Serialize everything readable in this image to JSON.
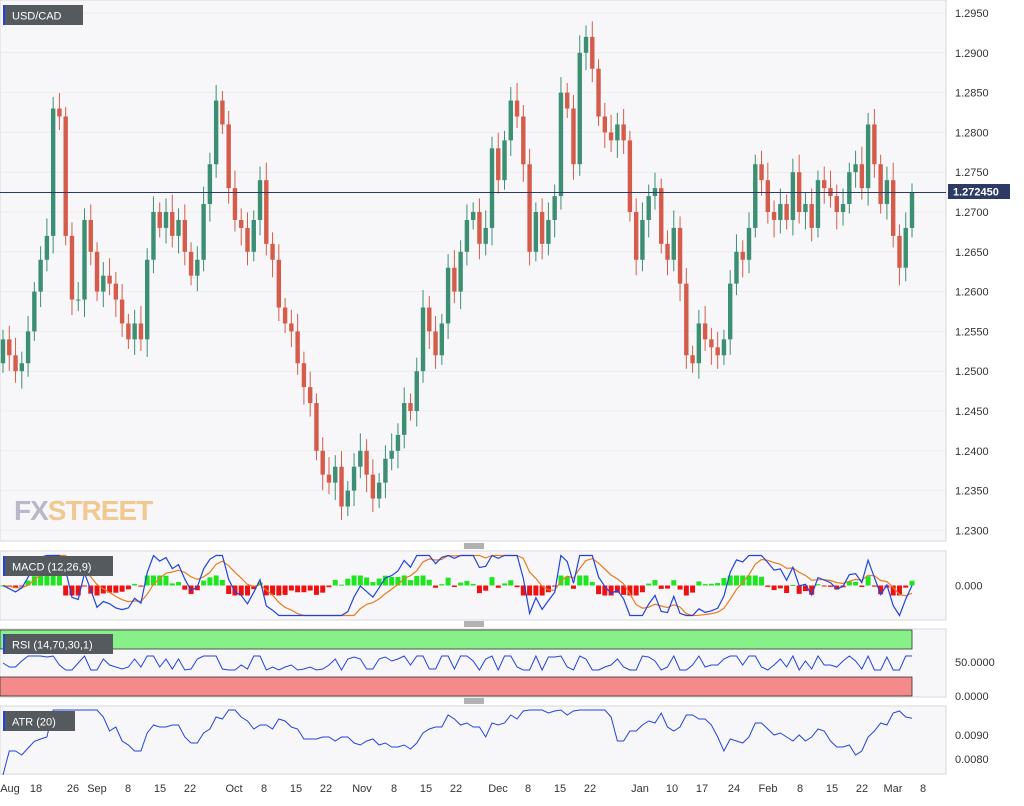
{
  "symbol": "USD/CAD",
  "brand": {
    "fx": "FX",
    "street": "STREET"
  },
  "colors": {
    "up": "#3c8f73",
    "down": "#d55c4b",
    "price_line": "#2e3a66",
    "price_tag": "#2e3a66",
    "macd_line": "#2244dd",
    "signal_line": "#e87c1e",
    "hist_pos": "#1ee61e",
    "hist_neg": "#ee1111",
    "rsi_line": "#2244dd",
    "rsi_overbought": "#88f088",
    "rsi_oversold": "#f48a8a",
    "atr_line": "#2244dd",
    "grid": "#ececec",
    "panel_bg": "#f7f7f9"
  },
  "last_price": "1.272450",
  "price_axis": [
    "1.2950",
    "1.2900",
    "1.2850",
    "1.2800",
    "1.2750",
    "1.2700",
    "1.2650",
    "1.2600",
    "1.2550",
    "1.2500",
    "1.2450",
    "1.2400",
    "1.2350",
    "1.2300"
  ],
  "x_axis": [
    "Aug",
    "18",
    "26",
    "Sep",
    "8",
    "15",
    "22",
    "Oct",
    "8",
    "15",
    "22",
    "Nov",
    "8",
    "15",
    "22",
    "Dec",
    "8",
    "15",
    "22",
    "Jan",
    "10",
    "17",
    "24",
    "Feb",
    "8",
    "15",
    "22",
    "Mar",
    "8"
  ],
  "macd": {
    "label": "MACD (12,26,9)",
    "axis": [
      "0.000"
    ]
  },
  "rsi": {
    "label": "RSI (14,70,30,1)",
    "axis": [
      "50.0000",
      "0.0000"
    ]
  },
  "atr": {
    "label": "ATR (20)",
    "axis": [
      "0.0090",
      "0.0080"
    ]
  },
  "chart_data": {
    "type": "candlestick",
    "title": "USD/CAD",
    "ylim": [
      1.229,
      1.297
    ],
    "candles_close": [
      1.254,
      1.252,
      1.25,
      1.251,
      1.255,
      1.26,
      1.264,
      1.267,
      1.283,
      1.282,
      1.267,
      1.259,
      1.259,
      1.269,
      1.265,
      1.26,
      1.262,
      1.261,
      1.259,
      1.256,
      1.254,
      1.256,
      1.254,
      1.264,
      1.27,
      1.268,
      1.27,
      1.267,
      1.269,
      1.265,
      1.262,
      1.264,
      1.271,
      1.276,
      1.284,
      1.281,
      1.273,
      1.269,
      1.268,
      1.265,
      1.269,
      1.274,
      1.266,
      1.264,
      1.258,
      1.256,
      1.255,
      1.251,
      1.248,
      1.246,
      1.24,
      1.237,
      1.236,
      1.238,
      1.233,
      1.235,
      1.238,
      1.24,
      1.237,
      1.234,
      1.236,
      1.239,
      1.24,
      1.242,
      1.246,
      1.245,
      1.25,
      1.258,
      1.255,
      1.252,
      1.256,
      1.263,
      1.26,
      1.265,
      1.269,
      1.27,
      1.266,
      1.268,
      1.278,
      1.274,
      1.279,
      1.284,
      1.282,
      1.276,
      1.265,
      1.27,
      1.266,
      1.269,
      1.272,
      1.285,
      1.283,
      1.276,
      1.29,
      1.292,
      1.288,
      1.282,
      1.28,
      1.279,
      1.281,
      1.279,
      1.27,
      1.264,
      1.269,
      1.272,
      1.273,
      1.266,
      1.264,
      1.268,
      1.261,
      1.252,
      1.251,
      1.256,
      1.254,
      1.253,
      1.252,
      1.254,
      1.261,
      1.265,
      1.264,
      1.268,
      1.276,
      1.274,
      1.27,
      1.269,
      1.271,
      1.269,
      1.275,
      1.27,
      1.271,
      1.268,
      1.274,
      1.273,
      1.272,
      1.27,
      1.271,
      1.275,
      1.276,
      1.273,
      1.281,
      1.276,
      1.271,
      1.274,
      1.267,
      1.263,
      1.268,
      1.2724
    ]
  }
}
